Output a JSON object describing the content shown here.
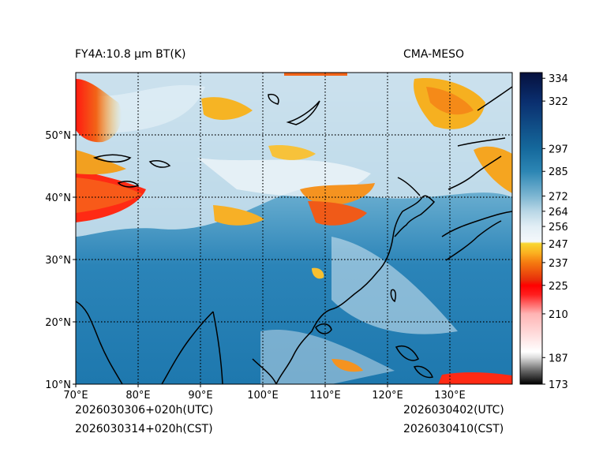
{
  "chart_data": {
    "type": "heatmap",
    "title_left": "FY4A:10.8 µm BT(K)",
    "title_right": "CMA-MESO",
    "x_axis": {
      "ticks": [
        {
          "value": 70,
          "label": "70°E"
        },
        {
          "value": 80,
          "label": "80°E"
        },
        {
          "value": 90,
          "label": "90°E"
        },
        {
          "value": 100,
          "label": "100°E"
        },
        {
          "value": 110,
          "label": "110°E"
        },
        {
          "value": 120,
          "label": "120°E"
        },
        {
          "value": 130,
          "label": "130°E"
        }
      ],
      "range": [
        70,
        140
      ]
    },
    "y_axis": {
      "ticks": [
        {
          "value": 10,
          "label": "10°N"
        },
        {
          "value": 20,
          "label": "20°N"
        },
        {
          "value": 30,
          "label": "30°N"
        },
        {
          "value": 40,
          "label": "40°N"
        },
        {
          "value": 50,
          "label": "50°N"
        }
      ],
      "range": [
        10,
        60
      ]
    },
    "colorbar": {
      "range": [
        173,
        337
      ],
      "ticks": [
        334,
        322,
        297,
        285,
        272,
        264,
        256,
        247,
        237,
        225,
        210,
        187,
        173
      ],
      "stops": [
        {
          "value": 173,
          "color": "#000000"
        },
        {
          "value": 180,
          "color": "#666666"
        },
        {
          "value": 187,
          "color": "#dddddd"
        },
        {
          "value": 190,
          "color": "#ffffff"
        },
        {
          "value": 210,
          "color": "#ffb4b4"
        },
        {
          "value": 220,
          "color": "#ff2020"
        },
        {
          "value": 225,
          "color": "#ff0000"
        },
        {
          "value": 228,
          "color": "#e8300a"
        },
        {
          "value": 237,
          "color": "#f57a10"
        },
        {
          "value": 242,
          "color": "#fbb020"
        },
        {
          "value": 247,
          "color": "#f8d630"
        },
        {
          "value": 248,
          "color": "#f4f8fb"
        },
        {
          "value": 256,
          "color": "#e2eef5"
        },
        {
          "value": 264,
          "color": "#b9d7e6"
        },
        {
          "value": 272,
          "color": "#7db6d2"
        },
        {
          "value": 285,
          "color": "#2c86b4"
        },
        {
          "value": 297,
          "color": "#15699c"
        },
        {
          "value": 322,
          "color": "#0a2e6e"
        },
        {
          "value": 337,
          "color": "#06103d"
        }
      ]
    },
    "gridlines": "dotted"
  },
  "footer": {
    "init_utc": "2026030306+020h(UTC)",
    "init_cst": "2026030314+020h(CST)",
    "valid_utc": "2026030402(UTC)",
    "valid_cst": "2026030410(CST)"
  }
}
